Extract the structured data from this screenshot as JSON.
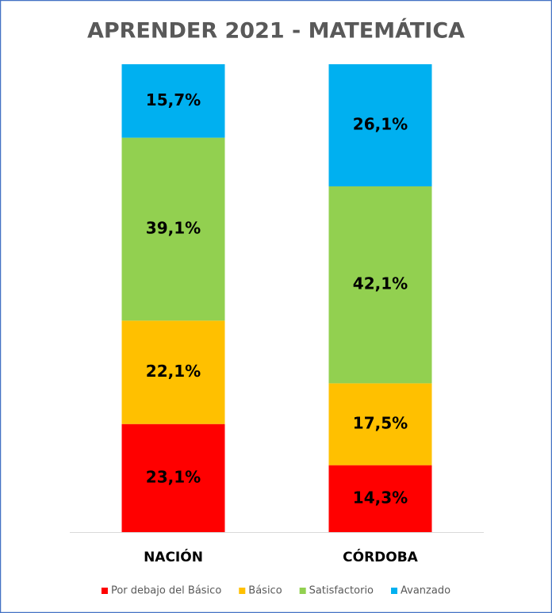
{
  "chart_data": {
    "type": "stacked_bar",
    "title": "APRENDER 2021 - MATEMÁTICA",
    "categories": [
      "NACIÓN",
      "CÓRDOBA"
    ],
    "ylim": [
      0,
      100
    ],
    "legend": "bottom",
    "series": [
      {
        "name": "Por debajo del Básico",
        "color": "#ff0000",
        "values": [
          23.1,
          14.3
        ],
        "value_labels": [
          "23,1%",
          "14,3%"
        ]
      },
      {
        "name": "Básico",
        "color": "#ffc000",
        "values": [
          22.1,
          17.5
        ],
        "value_labels": [
          "22,1%",
          "17,5%"
        ]
      },
      {
        "name": "Satisfactorio",
        "color": "#92d050",
        "values": [
          39.1,
          42.1
        ],
        "value_labels": [
          "39,1%",
          "42,1%"
        ]
      },
      {
        "name": "Avanzado",
        "color": "#00b0f0",
        "values": [
          15.7,
          26.1
        ],
        "value_labels": [
          "15,7%",
          "26,1%"
        ]
      }
    ]
  }
}
